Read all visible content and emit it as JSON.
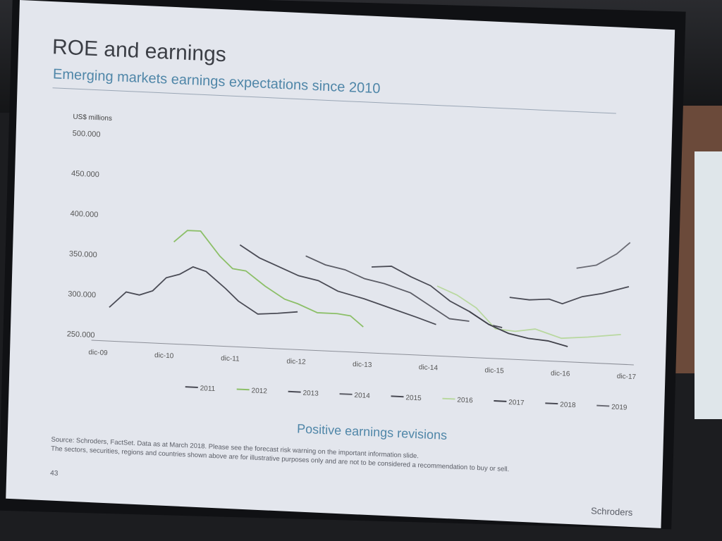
{
  "slide": {
    "title": "ROE and earnings",
    "subtitle": "Emerging markets earnings expectations since 2010",
    "caption": "Positive earnings revisions",
    "source_line1": "Source: Schroders, FactSet. Data as at March 2018. Please see the forecast risk warning on the important information slide.",
    "source_line2": "The sectors, securities, regions and countries shown above are for illustrative purposes only and are not to be considered a recommendation to buy or sell.",
    "page_number": "43",
    "brand": "Schroders"
  },
  "chart_data": {
    "type": "line",
    "title": "Emerging markets earnings expectations since 2010",
    "ylabel": "US$ millions",
    "xlabel": "",
    "ylim": [
      250,
      500
    ],
    "yticks": [
      250,
      300,
      350,
      400,
      450,
      500
    ],
    "ytick_labels": [
      "250.000",
      "300.000",
      "350.000",
      "400.000",
      "450.000",
      "500.000"
    ],
    "xlim": [
      0,
      8
    ],
    "xtick_labels": [
      "dic-09",
      "dic-10",
      "dic-11",
      "dic-12",
      "dic-13",
      "dic-14",
      "dic-15",
      "dic-16",
      "dic-17"
    ],
    "x_unit_note": "x in years since dic-09",
    "grid": false,
    "legend_position": "bottom",
    "series": [
      {
        "name": "2011",
        "color": "#4a4b55",
        "points": [
          [
            0.15,
            285
          ],
          [
            0.4,
            305
          ],
          [
            0.6,
            302
          ],
          [
            0.8,
            308
          ],
          [
            1.0,
            325
          ],
          [
            1.2,
            330
          ],
          [
            1.4,
            340
          ],
          [
            1.6,
            335
          ],
          [
            1.9,
            315
          ],
          [
            2.1,
            300
          ],
          [
            2.4,
            285
          ],
          [
            2.7,
            287
          ],
          [
            3.0,
            290
          ]
        ]
      },
      {
        "name": "2012",
        "color": "#8cbf68",
        "points": [
          [
            1.1,
            370
          ],
          [
            1.3,
            385
          ],
          [
            1.5,
            385
          ],
          [
            1.8,
            355
          ],
          [
            2.0,
            340
          ],
          [
            2.2,
            338
          ],
          [
            2.5,
            320
          ],
          [
            2.8,
            305
          ],
          [
            3.0,
            300
          ],
          [
            3.3,
            290
          ],
          [
            3.6,
            290
          ],
          [
            3.8,
            288
          ],
          [
            4.0,
            275
          ]
        ]
      },
      {
        "name": "2013",
        "color": "#4a4b55",
        "points": [
          [
            2.1,
            370
          ],
          [
            2.4,
            355
          ],
          [
            2.7,
            345
          ],
          [
            3.0,
            335
          ],
          [
            3.3,
            330
          ],
          [
            3.6,
            318
          ],
          [
            4.0,
            310
          ],
          [
            4.4,
            300
          ],
          [
            4.8,
            290
          ],
          [
            5.1,
            282
          ]
        ]
      },
      {
        "name": "2014",
        "color": "#5c5d66",
        "points": [
          [
            3.1,
            360
          ],
          [
            3.4,
            350
          ],
          [
            3.7,
            345
          ],
          [
            4.0,
            335
          ],
          [
            4.3,
            330
          ],
          [
            4.7,
            320
          ],
          [
            5.0,
            305
          ],
          [
            5.3,
            290
          ],
          [
            5.6,
            288
          ]
        ]
      },
      {
        "name": "2015",
        "color": "#4a4b55",
        "points": [
          [
            4.1,
            350
          ],
          [
            4.4,
            352
          ],
          [
            4.7,
            340
          ],
          [
            5.0,
            330
          ],
          [
            5.3,
            312
          ],
          [
            5.6,
            300
          ],
          [
            5.9,
            285
          ],
          [
            6.1,
            282
          ]
        ]
      },
      {
        "name": "2016",
        "color": "#b9d8a0",
        "points": [
          [
            5.1,
            330
          ],
          [
            5.4,
            320
          ],
          [
            5.7,
            305
          ],
          [
            6.0,
            280
          ],
          [
            6.3,
            278
          ],
          [
            6.6,
            282
          ],
          [
            7.0,
            272
          ],
          [
            7.4,
            275
          ],
          [
            7.9,
            280
          ]
        ]
      },
      {
        "name": "2017",
        "color": "#3f4049",
        "points": [
          [
            5.6,
            300
          ],
          [
            5.9,
            285
          ],
          [
            6.2,
            275
          ],
          [
            6.5,
            270
          ],
          [
            6.8,
            268
          ],
          [
            7.1,
            262
          ]
        ]
      },
      {
        "name": "2018",
        "color": "#4a4b55",
        "points": [
          [
            6.2,
            320
          ],
          [
            6.5,
            318
          ],
          [
            6.8,
            320
          ],
          [
            7.0,
            315
          ],
          [
            7.3,
            325
          ],
          [
            7.6,
            330
          ],
          [
            8.0,
            340
          ]
        ]
      },
      {
        "name": "2019",
        "color": "#6a6b74",
        "points": [
          [
            7.2,
            360
          ],
          [
            7.5,
            365
          ],
          [
            7.8,
            380
          ],
          [
            8.0,
            395
          ]
        ]
      }
    ]
  }
}
